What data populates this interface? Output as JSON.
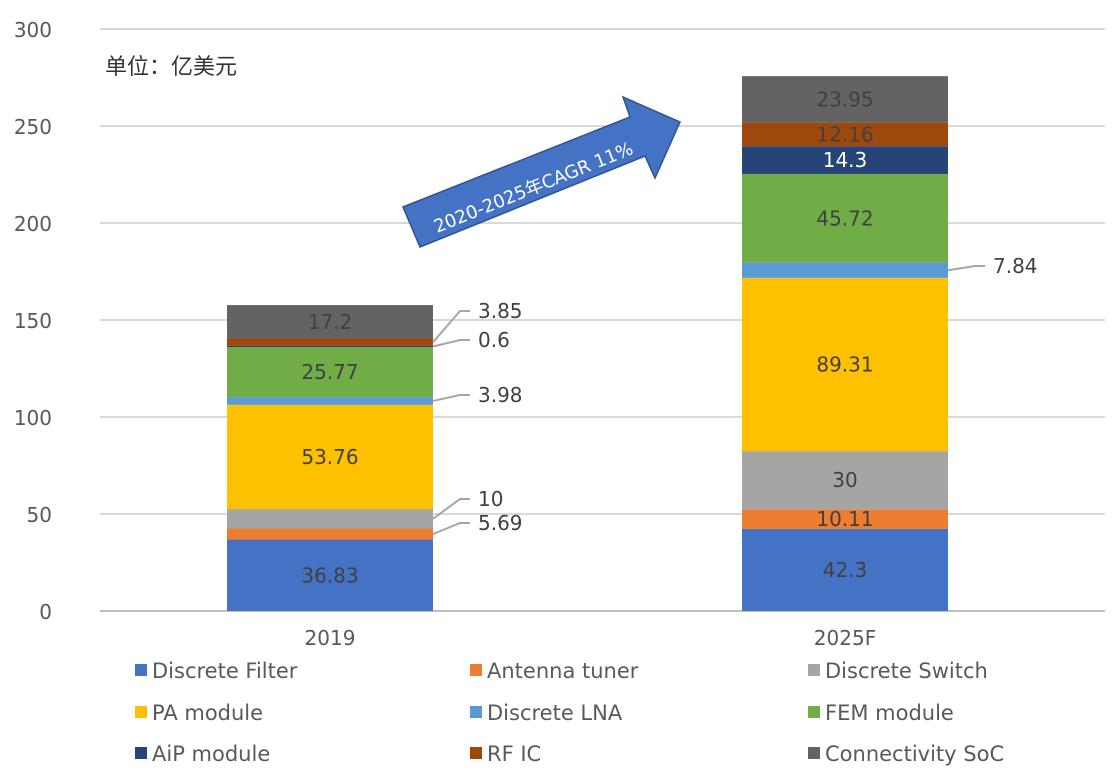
{
  "chart_data": {
    "type": "bar",
    "stacked": true,
    "title": "",
    "unit_note": "单位：亿美元",
    "annotation": "2020-2025年CAGR 11%",
    "categories": [
      "2019",
      "2025F"
    ],
    "ylim": [
      0,
      300
    ],
    "yticks": [
      0,
      50,
      100,
      150,
      200,
      250,
      300
    ],
    "grid": true,
    "legend_position": "bottom",
    "series": [
      {
        "name": "Discrete Filter",
        "color": "#4472C4",
        "values": [
          36.83,
          42.3
        ],
        "labels": [
          "36.83",
          "42.3"
        ]
      },
      {
        "name": "Antenna tuner",
        "color": "#ED7D31",
        "values": [
          5.69,
          10.11
        ],
        "labels": [
          "5.69",
          "10.11"
        ]
      },
      {
        "name": "Discrete Switch",
        "color": "#A5A5A5",
        "values": [
          10,
          30
        ],
        "labels": [
          "10",
          "30"
        ]
      },
      {
        "name": "PA module",
        "color": "#FFC000",
        "values": [
          53.76,
          89.31
        ],
        "labels": [
          "53.76",
          "89.31"
        ]
      },
      {
        "name": "Discrete LNA",
        "color": "#5B9BD5",
        "values": [
          3.98,
          7.84
        ],
        "labels": [
          "3.98",
          "7.84"
        ]
      },
      {
        "name": "FEM module",
        "color": "#70AD47",
        "values": [
          25.77,
          45.72
        ],
        "labels": [
          "25.77",
          "45.72"
        ]
      },
      {
        "name": "AiP module",
        "color": "#264478",
        "values": [
          0.6,
          14.3
        ],
        "labels": [
          "0.6",
          "14.3"
        ]
      },
      {
        "name": "RF IC",
        "color": "#9E480E",
        "values": [
          3.85,
          12.16
        ],
        "labels": [
          "3.85",
          "12.16"
        ]
      },
      {
        "name": "Connectivity SoC",
        "color": "#636363",
        "values": [
          17.2,
          23.95
        ],
        "labels": [
          "17.2",
          "23.95"
        ]
      }
    ]
  }
}
